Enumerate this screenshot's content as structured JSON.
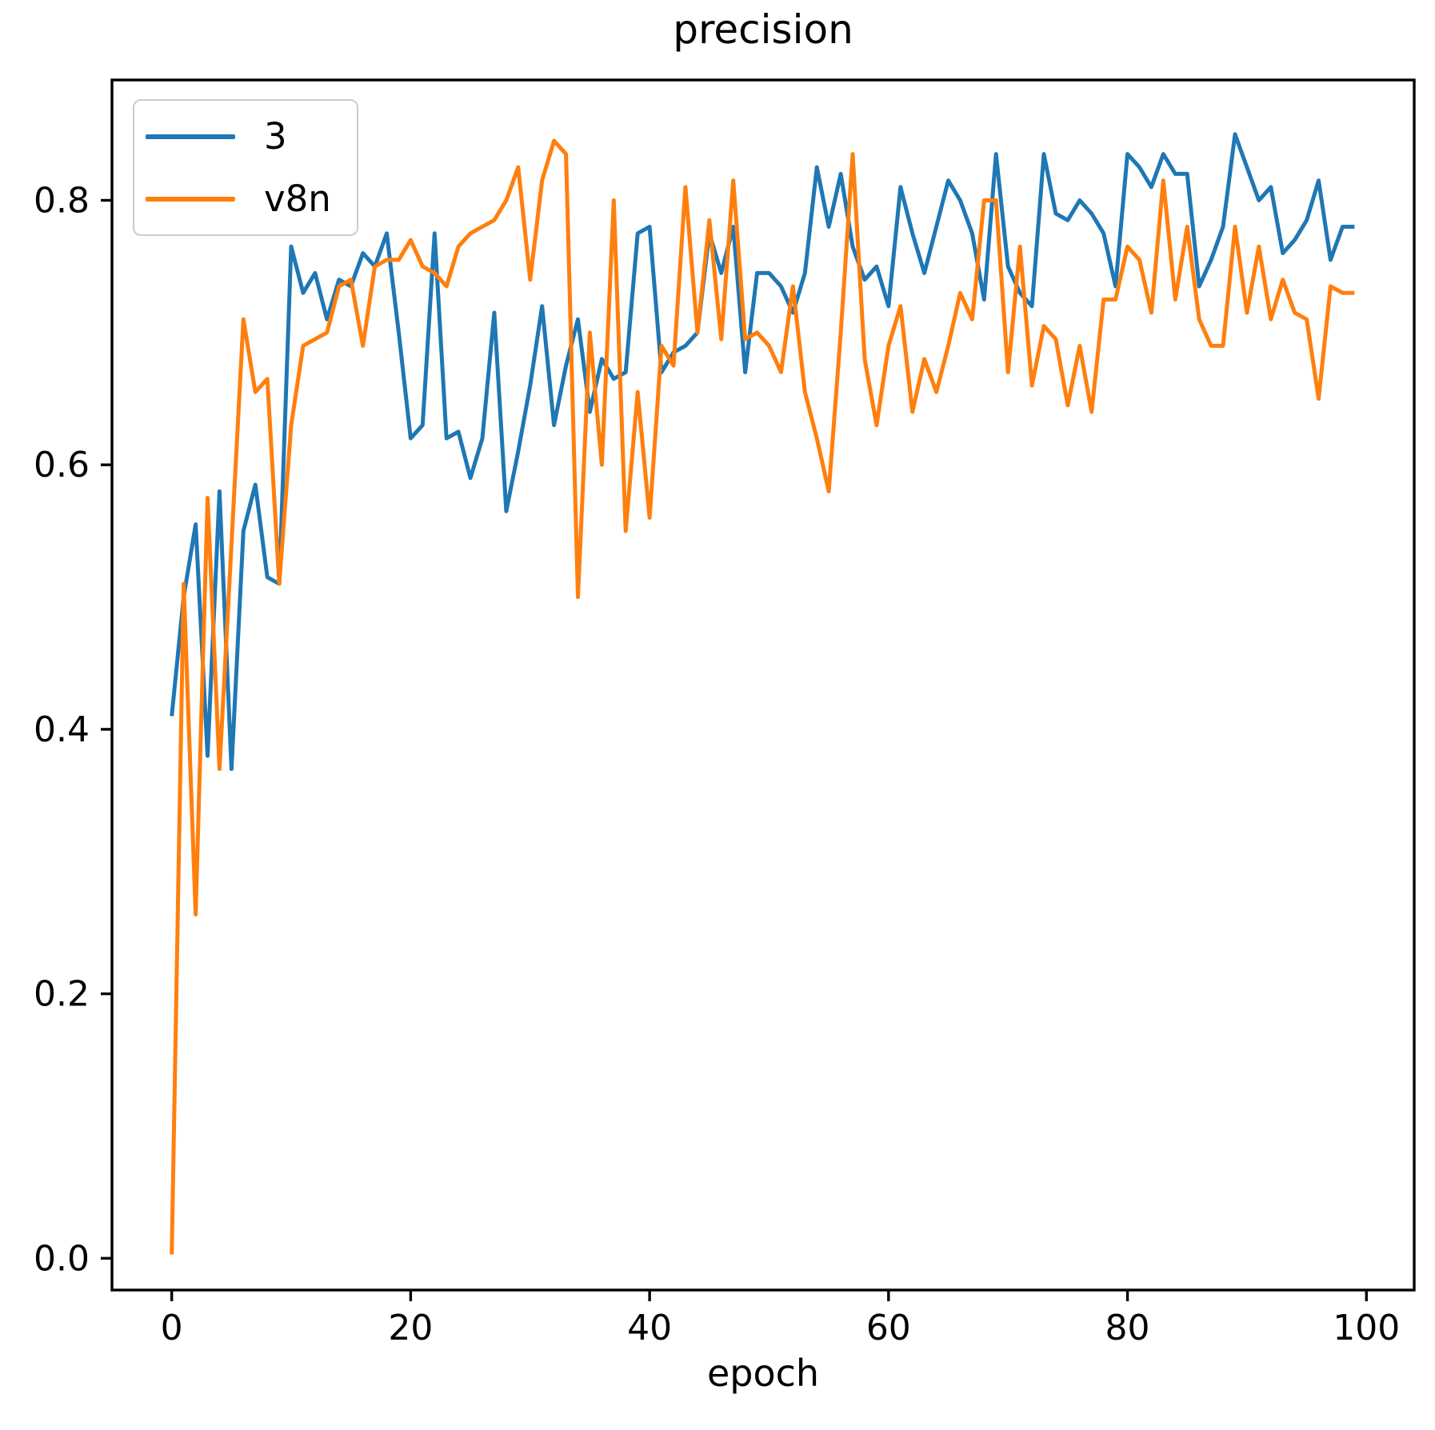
{
  "chart_data": {
    "type": "line",
    "title": "precision",
    "xlabel": "epoch",
    "ylabel": "",
    "grid": false,
    "legend": {
      "location": "upper left"
    },
    "xlim": [
      -5,
      104
    ],
    "ylim": [
      -0.024,
      0.891
    ],
    "xticks": {
      "values": [
        0,
        20,
        40,
        60,
        80,
        100
      ],
      "labels": [
        "0",
        "20",
        "40",
        "60",
        "80",
        "100"
      ]
    },
    "yticks": {
      "values": [
        0.0,
        0.2,
        0.4,
        0.6,
        0.8
      ],
      "labels": [
        "0.0",
        "0.2",
        "0.4",
        "0.6",
        "0.8"
      ]
    },
    "frame_color": "#000000",
    "series": [
      {
        "name": "3",
        "color": "#1f77b4",
        "x_start": 0,
        "x_step": 1,
        "values": [
          0.41,
          0.5,
          0.555,
          0.38,
          0.58,
          0.37,
          0.55,
          0.585,
          0.515,
          0.51,
          0.765,
          0.73,
          0.745,
          0.71,
          0.74,
          0.735,
          0.76,
          0.75,
          0.775,
          0.7,
          0.62,
          0.63,
          0.775,
          0.62,
          0.625,
          0.59,
          0.62,
          0.715,
          0.565,
          0.61,
          0.66,
          0.72,
          0.63,
          0.675,
          0.71,
          0.64,
          0.68,
          0.665,
          0.67,
          0.775,
          0.78,
          0.67,
          0.685,
          0.69,
          0.7,
          0.775,
          0.745,
          0.78,
          0.67,
          0.745,
          0.745,
          0.735,
          0.715,
          0.745,
          0.825,
          0.78,
          0.82,
          0.765,
          0.74,
          0.75,
          0.72,
          0.81,
          0.775,
          0.745,
          0.78,
          0.815,
          0.8,
          0.775,
          0.725,
          0.835,
          0.75,
          0.73,
          0.72,
          0.835,
          0.79,
          0.785,
          0.8,
          0.79,
          0.775,
          0.735,
          0.835,
          0.825,
          0.81,
          0.835,
          0.82,
          0.82,
          0.735,
          0.755,
          0.78,
          0.85,
          0.825,
          0.8,
          0.81,
          0.76,
          0.77,
          0.785,
          0.815,
          0.755,
          0.78,
          0.78
        ]
      },
      {
        "name": "v8n",
        "color": "#ff7f0e",
        "x_start": 0,
        "x_step": 1,
        "values": [
          0.003,
          0.51,
          0.26,
          0.575,
          0.37,
          0.54,
          0.71,
          0.655,
          0.665,
          0.51,
          0.63,
          0.69,
          0.695,
          0.7,
          0.735,
          0.74,
          0.69,
          0.75,
          0.755,
          0.755,
          0.77,
          0.75,
          0.745,
          0.735,
          0.765,
          0.775,
          0.78,
          0.785,
          0.8,
          0.825,
          0.74,
          0.815,
          0.845,
          0.835,
          0.5,
          0.7,
          0.6,
          0.8,
          0.55,
          0.655,
          0.56,
          0.69,
          0.675,
          0.81,
          0.7,
          0.785,
          0.695,
          0.815,
          0.695,
          0.7,
          0.69,
          0.67,
          0.735,
          0.655,
          0.62,
          0.58,
          0.7,
          0.835,
          0.68,
          0.63,
          0.69,
          0.72,
          0.64,
          0.68,
          0.655,
          0.69,
          0.73,
          0.71,
          0.8,
          0.8,
          0.67,
          0.765,
          0.66,
          0.705,
          0.695,
          0.645,
          0.69,
          0.64,
          0.725,
          0.725,
          0.765,
          0.755,
          0.715,
          0.815,
          0.725,
          0.78,
          0.71,
          0.69,
          0.69,
          0.78,
          0.715,
          0.765,
          0.71,
          0.74,
          0.715,
          0.71,
          0.65,
          0.735,
          0.73,
          0.73
        ]
      }
    ]
  }
}
